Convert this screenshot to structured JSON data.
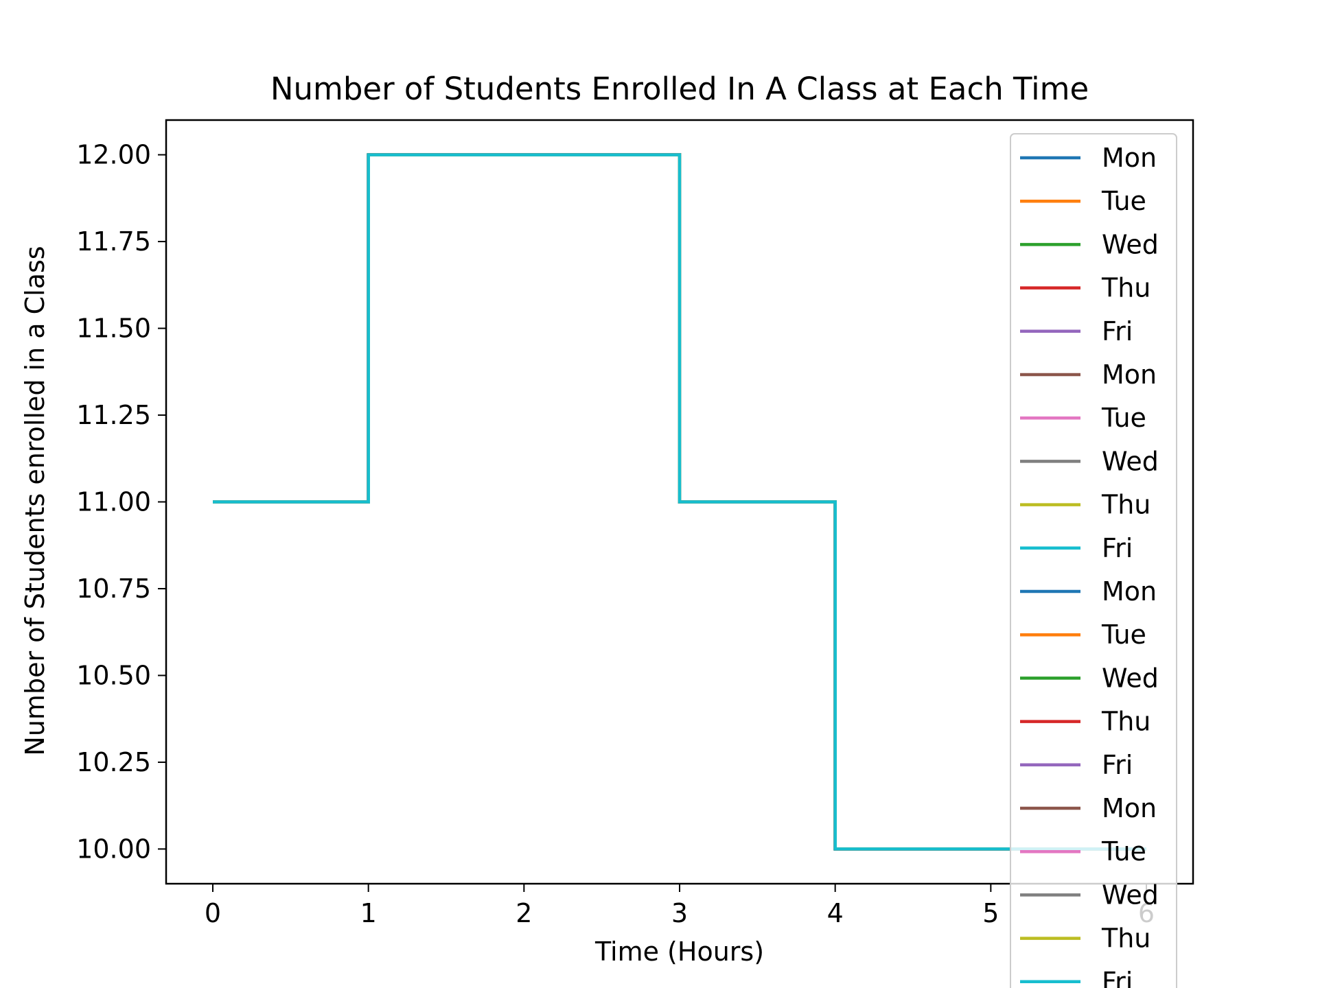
{
  "chart_data": {
    "type": "line",
    "title": "Number of Students Enrolled In A Class at Each Time",
    "xlabel": "Time (Hours)",
    "ylabel": "Number of Students enrolled in a Class",
    "xlim": [
      -0.3,
      6.3
    ],
    "ylim": [
      9.9,
      12.1
    ],
    "xticks": [
      0,
      1,
      2,
      3,
      4,
      5,
      6
    ],
    "xtick_labels": [
      "0",
      "1",
      "2",
      "3",
      "4",
      "5",
      "6"
    ],
    "yticks": [
      10.0,
      10.25,
      10.5,
      10.75,
      11.0,
      11.25,
      11.5,
      11.75,
      12.0
    ],
    "ytick_labels": [
      "10.00",
      "10.25",
      "10.50",
      "10.75",
      "11.00",
      "11.25",
      "11.50",
      "11.75",
      "12.00"
    ],
    "grid": false,
    "legend_position": "upper-right",
    "x": [
      0,
      1,
      1,
      3,
      3,
      4,
      4,
      6
    ],
    "series": [
      {
        "name": "Mon",
        "color": "#1f77b4",
        "values": [
          11,
          11,
          12,
          12,
          11,
          11,
          10,
          10
        ]
      },
      {
        "name": "Tue",
        "color": "#ff7f0e",
        "values": [
          11,
          11,
          12,
          12,
          11,
          11,
          10,
          10
        ]
      },
      {
        "name": "Wed",
        "color": "#2ca02c",
        "values": [
          11,
          11,
          12,
          12,
          11,
          11,
          10,
          10
        ]
      },
      {
        "name": "Thu",
        "color": "#d62728",
        "values": [
          11,
          11,
          12,
          12,
          11,
          11,
          10,
          10
        ]
      },
      {
        "name": "Fri",
        "color": "#9467bd",
        "values": [
          11,
          11,
          12,
          12,
          11,
          11,
          10,
          10
        ]
      },
      {
        "name": "Mon",
        "color": "#8c564b",
        "values": [
          11,
          11,
          12,
          12,
          11,
          11,
          10,
          10
        ]
      },
      {
        "name": "Tue",
        "color": "#e377c2",
        "values": [
          11,
          11,
          12,
          12,
          11,
          11,
          10,
          10
        ]
      },
      {
        "name": "Wed",
        "color": "#7f7f7f",
        "values": [
          11,
          11,
          12,
          12,
          11,
          11,
          10,
          10
        ]
      },
      {
        "name": "Thu",
        "color": "#bcbd22",
        "values": [
          11,
          11,
          12,
          12,
          11,
          11,
          10,
          10
        ]
      },
      {
        "name": "Fri",
        "color": "#17becf",
        "values": [
          11,
          11,
          12,
          12,
          11,
          11,
          10,
          10
        ]
      },
      {
        "name": "Mon",
        "color": "#1f77b4",
        "values": [
          11,
          11,
          12,
          12,
          11,
          11,
          10,
          10
        ]
      },
      {
        "name": "Tue",
        "color": "#ff7f0e",
        "values": [
          11,
          11,
          12,
          12,
          11,
          11,
          10,
          10
        ]
      },
      {
        "name": "Wed",
        "color": "#2ca02c",
        "values": [
          11,
          11,
          12,
          12,
          11,
          11,
          10,
          10
        ]
      },
      {
        "name": "Thu",
        "color": "#d62728",
        "values": [
          11,
          11,
          12,
          12,
          11,
          11,
          10,
          10
        ]
      },
      {
        "name": "Fri",
        "color": "#9467bd",
        "values": [
          11,
          11,
          12,
          12,
          11,
          11,
          10,
          10
        ]
      },
      {
        "name": "Mon",
        "color": "#8c564b",
        "values": [
          11,
          11,
          12,
          12,
          11,
          11,
          10,
          10
        ]
      },
      {
        "name": "Tue",
        "color": "#e377c2",
        "values": [
          11,
          11,
          12,
          12,
          11,
          11,
          10,
          10
        ]
      },
      {
        "name": "Wed",
        "color": "#7f7f7f",
        "values": [
          11,
          11,
          12,
          12,
          11,
          11,
          10,
          10
        ]
      },
      {
        "name": "Thu",
        "color": "#bcbd22",
        "values": [
          11,
          11,
          12,
          12,
          11,
          11,
          10,
          10
        ]
      },
      {
        "name": "Fri",
        "color": "#17becf",
        "values": [
          11,
          11,
          12,
          12,
          11,
          11,
          10,
          10
        ]
      }
    ]
  }
}
